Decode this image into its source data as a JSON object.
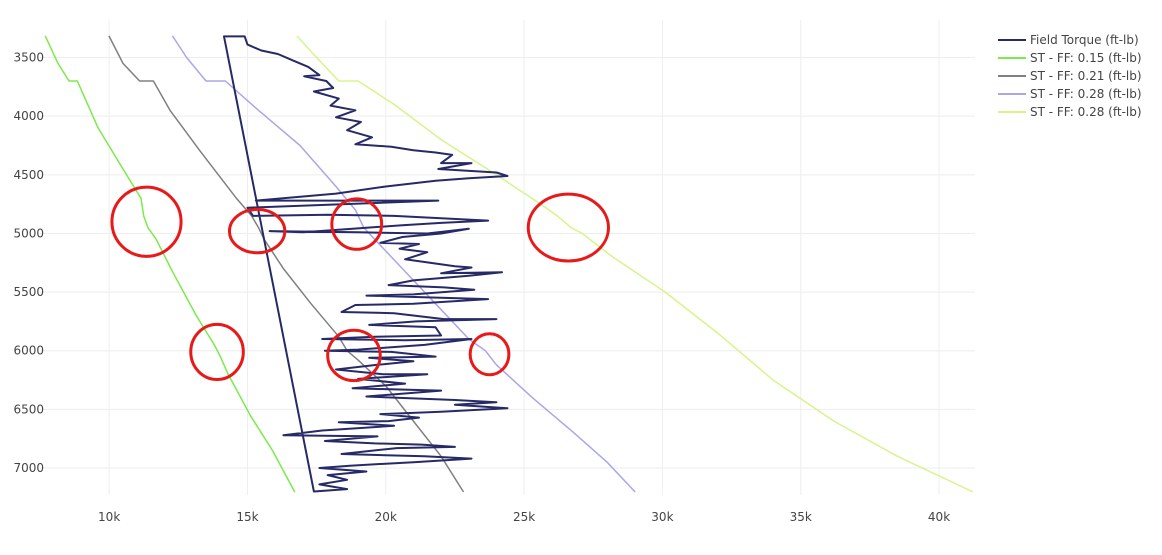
{
  "chart_data": {
    "type": "line",
    "title": "",
    "xlabel": "",
    "ylabel": "",
    "xlim": [
      7500,
      41300
    ],
    "ylim": [
      7230,
      3180
    ],
    "y_reversed": true,
    "x_ticks": [
      10000,
      15000,
      20000,
      25000,
      30000,
      35000,
      40000
    ],
    "x_tick_labels": [
      "10k",
      "15k",
      "20k",
      "25k",
      "30k",
      "35k",
      "40k"
    ],
    "y_ticks": [
      3500,
      4000,
      4500,
      5000,
      5500,
      6000,
      6500,
      7000
    ],
    "y_tick_labels": [
      "3500",
      "4000",
      "4500",
      "5000",
      "5500",
      "6000",
      "6500",
      "7000"
    ],
    "grid": true,
    "legend_position": "top-right",
    "series": [
      {
        "name": "Field Torque (ft-lb)",
        "color": "#272a66",
        "points": [
          [
            14150,
            3320
          ],
          [
            14900,
            3320
          ],
          [
            15000,
            3390
          ],
          [
            15500,
            3440
          ],
          [
            16100,
            3470
          ],
          [
            16600,
            3520
          ],
          [
            17200,
            3580
          ],
          [
            17600,
            3650
          ],
          [
            17050,
            3660
          ],
          [
            17850,
            3700
          ],
          [
            18100,
            3760
          ],
          [
            17400,
            3790
          ],
          [
            18300,
            3850
          ],
          [
            18000,
            3910
          ],
          [
            18900,
            3950
          ],
          [
            18200,
            4010
          ],
          [
            19100,
            4050
          ],
          [
            18600,
            4120
          ],
          [
            19500,
            4180
          ],
          [
            18900,
            4240
          ],
          [
            20200,
            4260
          ],
          [
            21000,
            4290
          ],
          [
            21800,
            4310
          ],
          [
            22400,
            4330
          ],
          [
            22000,
            4400
          ],
          [
            23100,
            4400
          ],
          [
            21900,
            4450
          ],
          [
            24000,
            4480
          ],
          [
            24400,
            4510
          ],
          [
            23000,
            4530
          ],
          [
            21800,
            4550
          ],
          [
            20000,
            4600
          ],
          [
            18200,
            4660
          ],
          [
            15300,
            4720
          ],
          [
            21900,
            4720
          ],
          [
            15000,
            4780
          ],
          [
            15200,
            4850
          ],
          [
            17900,
            4840
          ],
          [
            20300,
            4850
          ],
          [
            23700,
            4890
          ],
          [
            22000,
            4910
          ],
          [
            20600,
            4930
          ],
          [
            18800,
            4960
          ],
          [
            17000,
            4990
          ],
          [
            15800,
            4980
          ],
          [
            19000,
            4990
          ],
          [
            21500,
            5000
          ],
          [
            23000,
            4960
          ],
          [
            22000,
            5000
          ],
          [
            20600,
            5030
          ],
          [
            19800,
            5080
          ],
          [
            21200,
            5090
          ],
          [
            20500,
            5130
          ],
          [
            21500,
            5160
          ],
          [
            20700,
            5220
          ],
          [
            22500,
            5280
          ],
          [
            23100,
            5290
          ],
          [
            22000,
            5340
          ],
          [
            24200,
            5330
          ],
          [
            23000,
            5360
          ],
          [
            21000,
            5400
          ],
          [
            20100,
            5440
          ],
          [
            22100,
            5460
          ],
          [
            23200,
            5480
          ],
          [
            21000,
            5520
          ],
          [
            19300,
            5530
          ],
          [
            23700,
            5560
          ],
          [
            21000,
            5600
          ],
          [
            18900,
            5610
          ],
          [
            18400,
            5670
          ],
          [
            20300,
            5680
          ],
          [
            22100,
            5730
          ],
          [
            24000,
            5730
          ],
          [
            21100,
            5750
          ],
          [
            19400,
            5780
          ],
          [
            21800,
            5800
          ],
          [
            22000,
            5870
          ],
          [
            19600,
            5880
          ],
          [
            17700,
            5900
          ],
          [
            20700,
            5910
          ],
          [
            23100,
            5900
          ],
          [
            21400,
            5950
          ],
          [
            19000,
            5990
          ],
          [
            17800,
            6000
          ],
          [
            20200,
            6010
          ],
          [
            21800,
            6050
          ],
          [
            19400,
            6060
          ],
          [
            21000,
            6090
          ],
          [
            19700,
            6120
          ],
          [
            18200,
            6160
          ],
          [
            19900,
            6200
          ],
          [
            21500,
            6200
          ],
          [
            19000,
            6240
          ],
          [
            20700,
            6280
          ],
          [
            18800,
            6320
          ],
          [
            22000,
            6340
          ],
          [
            19300,
            6390
          ],
          [
            22500,
            6420
          ],
          [
            24000,
            6440
          ],
          [
            22500,
            6460
          ],
          [
            24400,
            6490
          ],
          [
            22000,
            6520
          ],
          [
            19800,
            6540
          ],
          [
            21200,
            6570
          ],
          [
            20100,
            6600
          ],
          [
            18300,
            6610
          ],
          [
            20300,
            6640
          ],
          [
            17700,
            6680
          ],
          [
            16300,
            6720
          ],
          [
            19700,
            6730
          ],
          [
            17800,
            6770
          ],
          [
            19600,
            6790
          ],
          [
            21300,
            6800
          ],
          [
            22500,
            6820
          ],
          [
            20400,
            6830
          ],
          [
            18400,
            6880
          ],
          [
            21400,
            6900
          ],
          [
            23100,
            6920
          ],
          [
            21000,
            6950
          ],
          [
            18700,
            6980
          ],
          [
            17600,
            7000
          ],
          [
            19300,
            7030
          ],
          [
            17900,
            7060
          ],
          [
            18600,
            7100
          ],
          [
            17600,
            7140
          ],
          [
            18600,
            7180
          ],
          [
            17400,
            7200
          ],
          [
            14150,
            3320
          ]
        ]
      },
      {
        "name": "ST - FF: 0.15 (ft-lb)",
        "color": "#7bea4a",
        "points": [
          [
            7700,
            3320
          ],
          [
            8150,
            3550
          ],
          [
            8550,
            3700
          ],
          [
            8850,
            3700
          ],
          [
            9600,
            4100
          ],
          [
            10500,
            4450
          ],
          [
            11150,
            4700
          ],
          [
            11250,
            4850
          ],
          [
            11400,
            4950
          ],
          [
            11700,
            5050
          ],
          [
            12300,
            5330
          ],
          [
            13150,
            5700
          ],
          [
            13800,
            5950
          ],
          [
            14000,
            6040
          ],
          [
            14300,
            6200
          ],
          [
            15100,
            6550
          ],
          [
            15900,
            6850
          ],
          [
            16700,
            7200
          ]
        ]
      },
      {
        "name": "ST - FF: 0.21 (ft-lb)",
        "color": "#808080",
        "points": [
          [
            10000,
            3320
          ],
          [
            10500,
            3550
          ],
          [
            11100,
            3700
          ],
          [
            11600,
            3700
          ],
          [
            12200,
            3950
          ],
          [
            13300,
            4300
          ],
          [
            14600,
            4700
          ],
          [
            15150,
            4850
          ],
          [
            15400,
            4950
          ],
          [
            15600,
            5050
          ],
          [
            16300,
            5300
          ],
          [
            17300,
            5600
          ],
          [
            18300,
            5880
          ],
          [
            18600,
            6000
          ],
          [
            19000,
            6080
          ],
          [
            20000,
            6300
          ],
          [
            21000,
            6600
          ],
          [
            22000,
            6900
          ],
          [
            22800,
            7200
          ]
        ]
      },
      {
        "name": "ST - FF: 0.28 (ft-lb)",
        "color": "#aaa6e8",
        "points": [
          [
            12300,
            3320
          ],
          [
            12800,
            3500
          ],
          [
            13500,
            3700
          ],
          [
            14200,
            3700
          ],
          [
            15400,
            3950
          ],
          [
            16900,
            4250
          ],
          [
            18200,
            4600
          ],
          [
            18900,
            4800
          ],
          [
            19200,
            4950
          ],
          [
            19600,
            5050
          ],
          [
            20600,
            5300
          ],
          [
            21800,
            5600
          ],
          [
            23000,
            5900
          ],
          [
            23600,
            6000
          ],
          [
            24000,
            6120
          ],
          [
            25300,
            6400
          ],
          [
            26800,
            6700
          ],
          [
            28000,
            6950
          ],
          [
            29000,
            7200
          ]
        ]
      },
      {
        "name": "ST - FF: 0.28 (ft-lb)",
        "color": "#d5f58a",
        "points": [
          [
            16800,
            3320
          ],
          [
            17500,
            3500
          ],
          [
            18300,
            3700
          ],
          [
            19000,
            3700
          ],
          [
            20300,
            3900
          ],
          [
            22000,
            4200
          ],
          [
            24000,
            4500
          ],
          [
            25600,
            4750
          ],
          [
            26200,
            4850
          ],
          [
            26700,
            4950
          ],
          [
            27100,
            5000
          ],
          [
            28200,
            5200
          ],
          [
            30100,
            5500
          ],
          [
            32000,
            5850
          ],
          [
            34000,
            6250
          ],
          [
            36200,
            6600
          ],
          [
            38500,
            6900
          ],
          [
            41200,
            7200
          ]
        ]
      }
    ],
    "annotations": [
      {
        "shape": "circle",
        "color": "#e81919",
        "x": 11350,
        "y": 4900,
        "rx": 1250,
        "ry": 295
      },
      {
        "shape": "circle",
        "color": "#e81919",
        "x": 13900,
        "y": 6010,
        "rx": 950,
        "ry": 235
      },
      {
        "shape": "circle",
        "color": "#e81919",
        "x": 15350,
        "y": 4980,
        "rx": 1000,
        "ry": 185
      },
      {
        "shape": "circle",
        "color": "#e81919",
        "x": 18950,
        "y": 4920,
        "rx": 900,
        "ry": 215
      },
      {
        "shape": "circle",
        "color": "#e81919",
        "x": 18850,
        "y": 6040,
        "rx": 950,
        "ry": 215
      },
      {
        "shape": "circle",
        "color": "#e81919",
        "x": 23750,
        "y": 6030,
        "rx": 700,
        "ry": 175
      },
      {
        "shape": "circle",
        "color": "#e81919",
        "x": 26600,
        "y": 4950,
        "rx": 1450,
        "ry": 285
      }
    ]
  }
}
